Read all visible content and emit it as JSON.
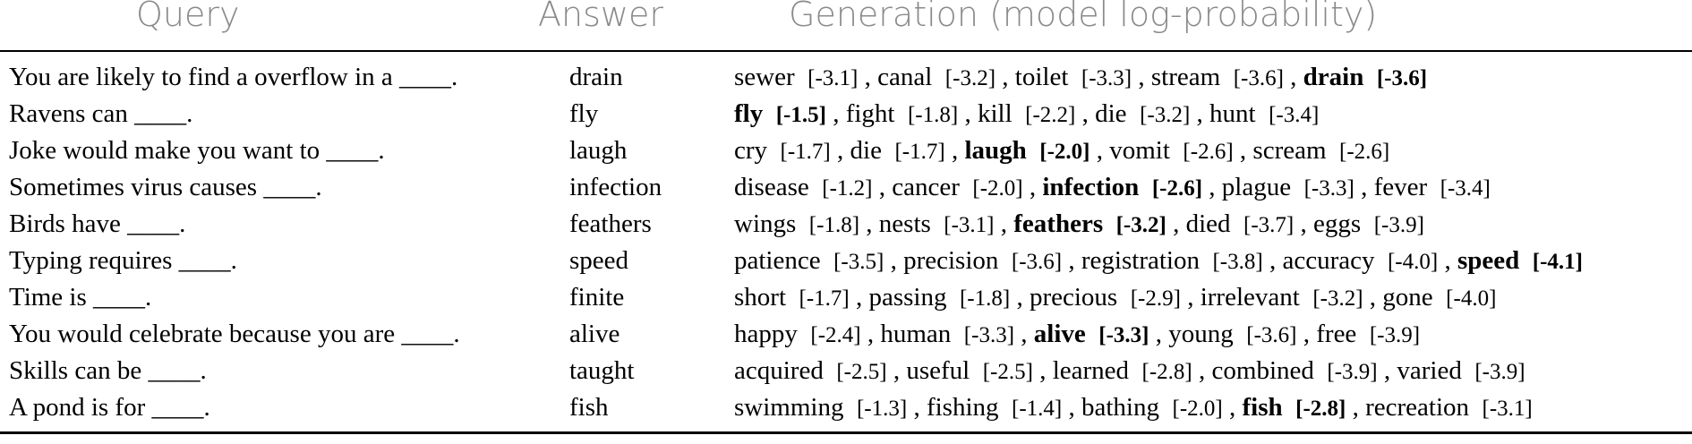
{
  "headers": {
    "query": "Query",
    "answer": "Answer",
    "generation": "Generation (model log-probability)"
  },
  "rows": [
    {
      "query": "You are likely to find a overflow in a ____.",
      "answer": "drain",
      "generations": [
        {
          "word": "sewer",
          "score": "[-3.1]",
          "bold": false
        },
        {
          "word": "canal",
          "score": "[-3.2]",
          "bold": false
        },
        {
          "word": "toilet",
          "score": "[-3.3]",
          "bold": false
        },
        {
          "word": "stream",
          "score": "[-3.6]",
          "bold": false
        },
        {
          "word": "drain",
          "score": "[-3.6]",
          "bold": true
        }
      ]
    },
    {
      "query": "Ravens can ____.",
      "answer": "fly",
      "generations": [
        {
          "word": "fly",
          "score": "[-1.5]",
          "bold": true
        },
        {
          "word": "fight",
          "score": "[-1.8]",
          "bold": false
        },
        {
          "word": "kill",
          "score": "[-2.2]",
          "bold": false
        },
        {
          "word": "die",
          "score": "[-3.2]",
          "bold": false
        },
        {
          "word": "hunt",
          "score": "[-3.4]",
          "bold": false
        }
      ]
    },
    {
      "query": "Joke would make you want to ____.",
      "answer": "laugh",
      "generations": [
        {
          "word": "cry",
          "score": "[-1.7]",
          "bold": false
        },
        {
          "word": "die",
          "score": "[-1.7]",
          "bold": false
        },
        {
          "word": "laugh",
          "score": "[-2.0]",
          "bold": true
        },
        {
          "word": "vomit",
          "score": "[-2.6]",
          "bold": false
        },
        {
          "word": "scream",
          "score": "[-2.6]",
          "bold": false
        }
      ]
    },
    {
      "query": "Sometimes virus causes ____.",
      "answer": "infection",
      "generations": [
        {
          "word": "disease",
          "score": "[-1.2]",
          "bold": false
        },
        {
          "word": "cancer",
          "score": "[-2.0]",
          "bold": false
        },
        {
          "word": "infection",
          "score": "[-2.6]",
          "bold": true
        },
        {
          "word": "plague",
          "score": "[-3.3]",
          "bold": false
        },
        {
          "word": "fever",
          "score": "[-3.4]",
          "bold": false
        }
      ]
    },
    {
      "query": "Birds have ____.",
      "answer": "feathers",
      "generations": [
        {
          "word": "wings",
          "score": "[-1.8]",
          "bold": false
        },
        {
          "word": "nests",
          "score": "[-3.1]",
          "bold": false
        },
        {
          "word": "feathers",
          "score": "[-3.2]",
          "bold": true
        },
        {
          "word": "died",
          "score": "[-3.7]",
          "bold": false
        },
        {
          "word": "eggs",
          "score": "[-3.9]",
          "bold": false
        }
      ]
    },
    {
      "query": "Typing requires ____.",
      "answer": "speed",
      "generations": [
        {
          "word": "patience",
          "score": "[-3.5]",
          "bold": false
        },
        {
          "word": "precision",
          "score": "[-3.6]",
          "bold": false
        },
        {
          "word": "registration",
          "score": "[-3.8]",
          "bold": false
        },
        {
          "word": "accuracy",
          "score": "[-4.0]",
          "bold": false
        },
        {
          "word": "speed",
          "score": "[-4.1]",
          "bold": true
        }
      ]
    },
    {
      "query": "Time is ____.",
      "answer": "finite",
      "generations": [
        {
          "word": "short",
          "score": "[-1.7]",
          "bold": false
        },
        {
          "word": "passing",
          "score": "[-1.8]",
          "bold": false
        },
        {
          "word": "precious",
          "score": "[-2.9]",
          "bold": false
        },
        {
          "word": "irrelevant",
          "score": "[-3.2]",
          "bold": false
        },
        {
          "word": "gone",
          "score": "[-4.0]",
          "bold": false
        }
      ]
    },
    {
      "query": "You would celebrate because you are ____.",
      "answer": "alive",
      "generations": [
        {
          "word": "happy",
          "score": "[-2.4]",
          "bold": false
        },
        {
          "word": "human",
          "score": "[-3.3]",
          "bold": false
        },
        {
          "word": "alive",
          "score": "[-3.3]",
          "bold": true
        },
        {
          "word": "young",
          "score": "[-3.6]",
          "bold": false
        },
        {
          "word": "free",
          "score": "[-3.9]",
          "bold": false
        }
      ]
    },
    {
      "query": "Skills can be ____.",
      "answer": "taught",
      "generations": [
        {
          "word": "acquired",
          "score": "[-2.5]",
          "bold": false
        },
        {
          "word": "useful",
          "score": "[-2.5]",
          "bold": false
        },
        {
          "word": "learned",
          "score": "[-2.8]",
          "bold": false
        },
        {
          "word": "combined",
          "score": "[-3.9]",
          "bold": false
        },
        {
          "word": "varied",
          "score": "[-3.9]",
          "bold": false
        }
      ]
    },
    {
      "query": "A pond is for ____.",
      "answer": "fish",
      "generations": [
        {
          "word": "swimming",
          "score": "[-1.3]",
          "bold": false
        },
        {
          "word": "fishing",
          "score": "[-1.4]",
          "bold": false
        },
        {
          "word": "bathing",
          "score": "[-2.0]",
          "bold": false
        },
        {
          "word": "fish",
          "score": "[-2.8]",
          "bold": true
        },
        {
          "word": "recreation",
          "score": "[-3.1]",
          "bold": false
        }
      ]
    }
  ]
}
